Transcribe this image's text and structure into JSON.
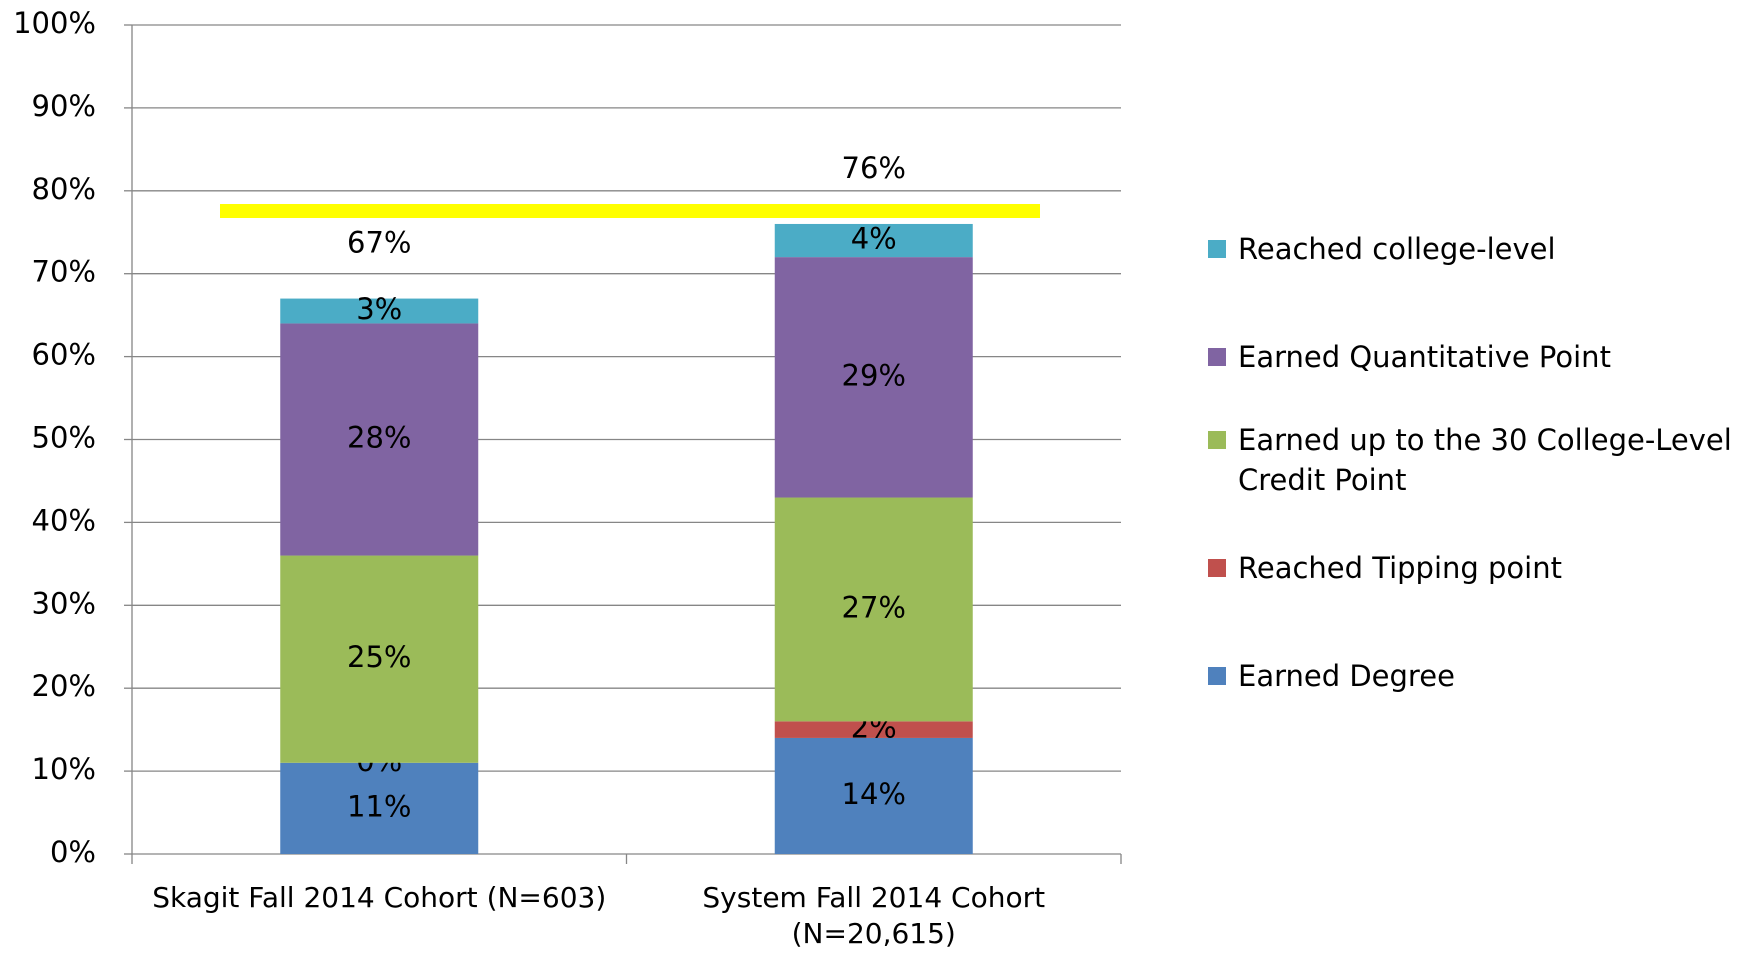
{
  "chart_data": {
    "type": "stacked_bar",
    "categories": [
      "Skagit Fall 2014 Cohort (N=603)",
      "System Fall 2014 Cohort (N=20,615)"
    ],
    "series": [
      {
        "name": "Earned Degree",
        "color": "#4f81bd",
        "values": [
          11,
          14
        ],
        "value_labels": [
          "11%",
          "14%"
        ]
      },
      {
        "name": "Reached Tipping point",
        "color": "#c0504d",
        "values": [
          0,
          2
        ],
        "value_labels": [
          "0%",
          "2%"
        ]
      },
      {
        "name": "Earned up to the 30 College-Level Credit Point",
        "color": "#9bbb59",
        "values": [
          25,
          27
        ],
        "value_labels": [
          "25%",
          "27%"
        ]
      },
      {
        "name": "Earned Quantitative Point",
        "color": "#8064a2",
        "values": [
          28,
          29
        ],
        "value_labels": [
          "28%",
          "29%"
        ]
      },
      {
        "name": "Reached college-level",
        "color": "#4bacc6",
        "values": [
          3,
          4
        ],
        "value_labels": [
          "3%",
          "4%"
        ]
      }
    ],
    "totals": [
      67,
      76
    ],
    "total_labels": [
      "67%",
      "76%"
    ],
    "ylim": [
      0,
      100
    ],
    "yticks": [
      {
        "value": 0,
        "label": "0%"
      },
      {
        "value": 10,
        "label": "10%"
      },
      {
        "value": 20,
        "label": "20%"
      },
      {
        "value": 30,
        "label": "30%"
      },
      {
        "value": 40,
        "label": "40%"
      },
      {
        "value": 50,
        "label": "50%"
      },
      {
        "value": 60,
        "label": "60%"
      },
      {
        "value": 70,
        "label": "70%"
      },
      {
        "value": 80,
        "label": "80%"
      },
      {
        "value": 90,
        "label": "90%"
      },
      {
        "value": 100,
        "label": "100%"
      }
    ],
    "grid": true,
    "legend": "right"
  }
}
